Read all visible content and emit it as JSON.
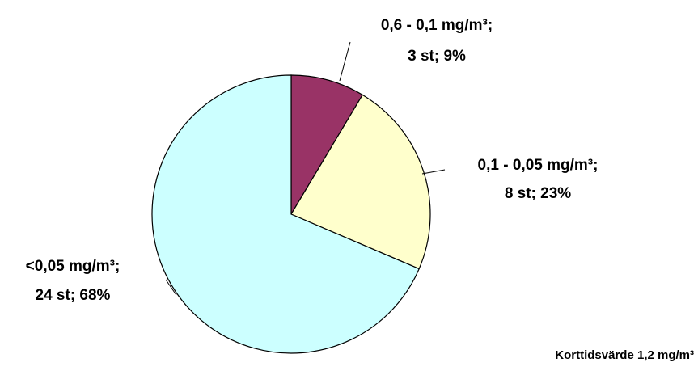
{
  "chart_data": {
    "type": "pie",
    "categories": [
      "0,6 - 0,1 mg/m³;",
      "0,1 - 0,05 mg/m³;",
      "<0,05 mg/m³;"
    ],
    "values": [
      3,
      8,
      24
    ],
    "value_labels": [
      "3 st; 9%",
      "8 st; 23%",
      "24 st; 68%"
    ],
    "colors": [
      "#993366",
      "#ffffcc",
      "#ccffff"
    ],
    "annotation": "Korttidsvärde 1,2 mg/m³"
  }
}
